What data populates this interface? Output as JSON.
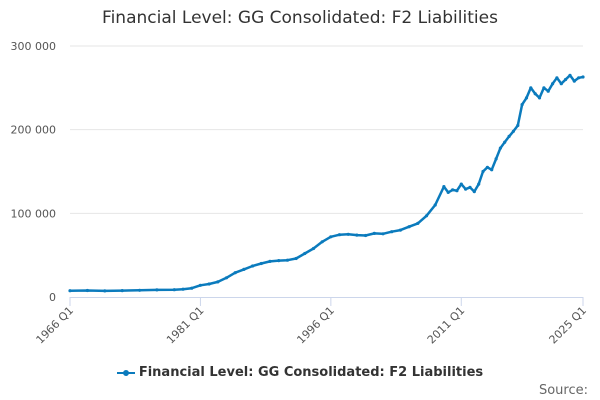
{
  "title": "Financial Level: GG Consolidated: F2 Liabilities",
  "source_label": "Source:",
  "chart_data": {
    "type": "line",
    "title": "Financial Level: GG Consolidated: F2 Liabilities",
    "xlabel": "",
    "ylabel": "",
    "ylim": [
      0,
      300000
    ],
    "yticks": [
      0,
      100000,
      200000,
      300000
    ],
    "ytick_labels": [
      "0",
      "100 000",
      "200 000",
      "300 000"
    ],
    "xlim": [
      "1966 Q1",
      "2025 Q1"
    ],
    "xtick_labels": [
      "1966 Q1",
      "1981 Q1",
      "1996 Q1",
      "2011 Q1",
      "2025 Q1"
    ],
    "grid": true,
    "legend_position": "bottom-center",
    "color": "#0b7bbd",
    "series": [
      {
        "name": "Financial Level: GG Consolidated: F2 Liabilities",
        "x": [
          "1966 Q1",
          "1968 Q1",
          "1970 Q1",
          "1972 Q1",
          "1974 Q1",
          "1976 Q1",
          "1978 Q1",
          "1979 Q1",
          "1980 Q1",
          "1981 Q1",
          "1982 Q1",
          "1983 Q1",
          "1984 Q1",
          "1985 Q1",
          "1986 Q1",
          "1987 Q1",
          "1988 Q1",
          "1989 Q1",
          "1990 Q1",
          "1991 Q1",
          "1992 Q1",
          "1993 Q1",
          "1994 Q1",
          "1995 Q1",
          "1996 Q1",
          "1997 Q1",
          "1998 Q1",
          "1999 Q1",
          "2000 Q1",
          "2001 Q1",
          "2002 Q1",
          "2003 Q1",
          "2004 Q1",
          "2005 Q1",
          "2006 Q1",
          "2007 Q1",
          "2008 Q1",
          "2009 Q1",
          "2009 Q3",
          "2010 Q1",
          "2010 Q3",
          "2011 Q1",
          "2011 Q3",
          "2012 Q1",
          "2012 Q3",
          "2013 Q1",
          "2013 Q3",
          "2014 Q1",
          "2014 Q3",
          "2015 Q1",
          "2015 Q3",
          "2016 Q1",
          "2016 Q3",
          "2017 Q1",
          "2017 Q3",
          "2018 Q1",
          "2018 Q3",
          "2019 Q1",
          "2019 Q3",
          "2020 Q1",
          "2020 Q3",
          "2021 Q1",
          "2021 Q3",
          "2022 Q1",
          "2022 Q3",
          "2023 Q1",
          "2023 Q3",
          "2024 Q1",
          "2024 Q3",
          "2025 Q1"
        ],
        "values": [
          7500,
          7800,
          7300,
          7600,
          8000,
          8500,
          8700,
          9300,
          10500,
          14000,
          15500,
          18000,
          23000,
          29000,
          33000,
          37000,
          40000,
          42500,
          43500,
          44000,
          46000,
          52000,
          58000,
          66000,
          72000,
          74500,
          75000,
          74000,
          73500,
          76000,
          75500,
          78000,
          80000,
          84000,
          88000,
          97000,
          110000,
          132000,
          125000,
          128000,
          127000,
          135000,
          129000,
          131000,
          126000,
          135000,
          150000,
          155000,
          152000,
          165000,
          178000,
          185000,
          192000,
          198000,
          205000,
          230000,
          238000,
          250000,
          243000,
          238000,
          250000,
          246000,
          255000,
          262000,
          255000,
          260000,
          265000,
          258000,
          262000,
          263000
        ]
      }
    ]
  }
}
